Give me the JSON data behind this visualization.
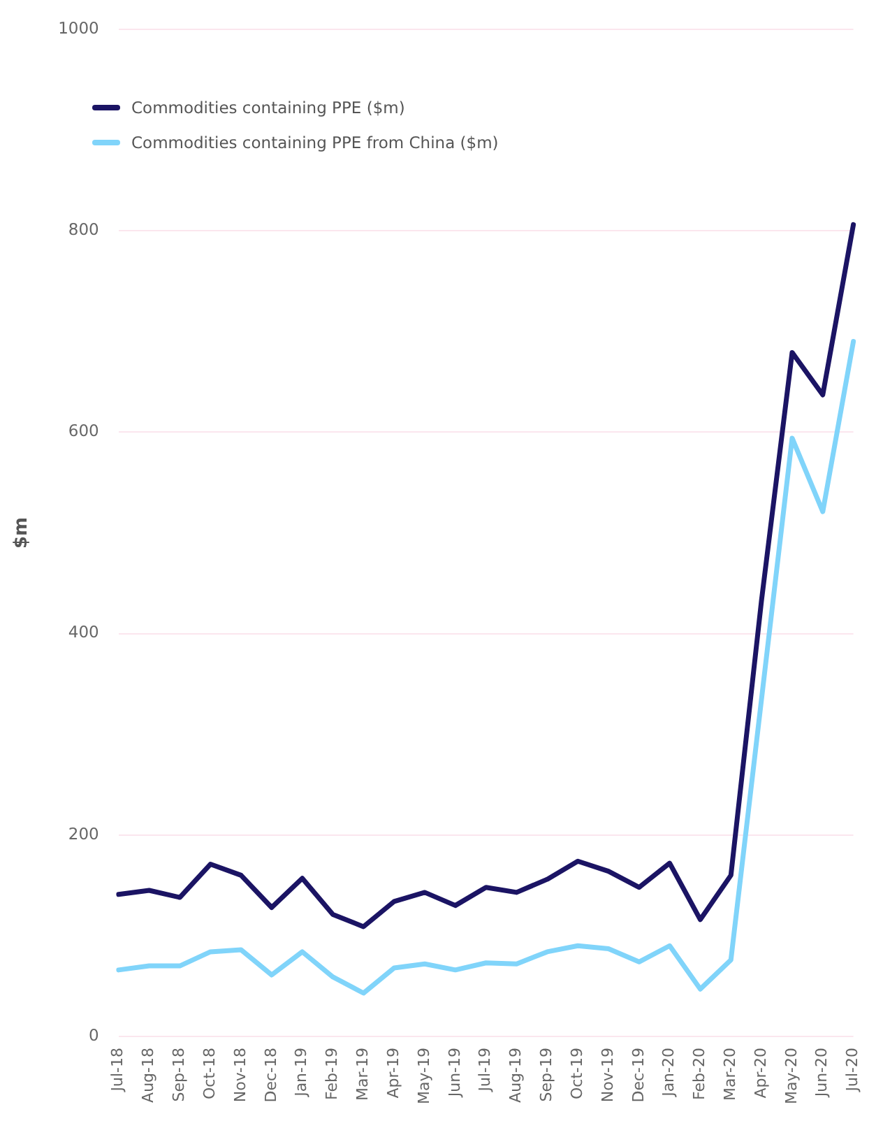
{
  "chart_data": {
    "type": "line",
    "ylabel": "$m",
    "categories": [
      "Jul-18",
      "Aug-18",
      "Sep-18",
      "Oct-18",
      "Nov-18",
      "Dec-18",
      "Jan-19",
      "Feb-19",
      "Mar-19",
      "Apr-19",
      "May-19",
      "Jun-19",
      "Jul-19",
      "Aug-19",
      "Sep-19",
      "Oct-19",
      "Nov-19",
      "Dec-19",
      "Jan-20",
      "Feb-20",
      "Mar-20",
      "Apr-20",
      "May-20",
      "Jun-20",
      "Jul-20"
    ],
    "series": [
      {
        "name": "Commodities containing PPE ($m)",
        "color": "#1b1464",
        "values": [
          141,
          145,
          138,
          171,
          160,
          128,
          157,
          121,
          109,
          134,
          143,
          130,
          148,
          143,
          156,
          174,
          164,
          148,
          172,
          116,
          160,
          433,
          679,
          637,
          806
        ]
      },
      {
        "name": "Commodities containing PPE from China ($m)",
        "color": "#80d4fa",
        "values": [
          66,
          70,
          70,
          84,
          86,
          61,
          84,
          59,
          43,
          68,
          72,
          66,
          73,
          72,
          84,
          90,
          87,
          74,
          90,
          47,
          76,
          335,
          594,
          521,
          690
        ]
      }
    ],
    "ylim": [
      0,
      1000
    ],
    "yticks": [
      0,
      200,
      400,
      600,
      800,
      1000
    ],
    "grid": "y",
    "legend": "top left",
    "marker": "none",
    "line_style": "solid"
  }
}
